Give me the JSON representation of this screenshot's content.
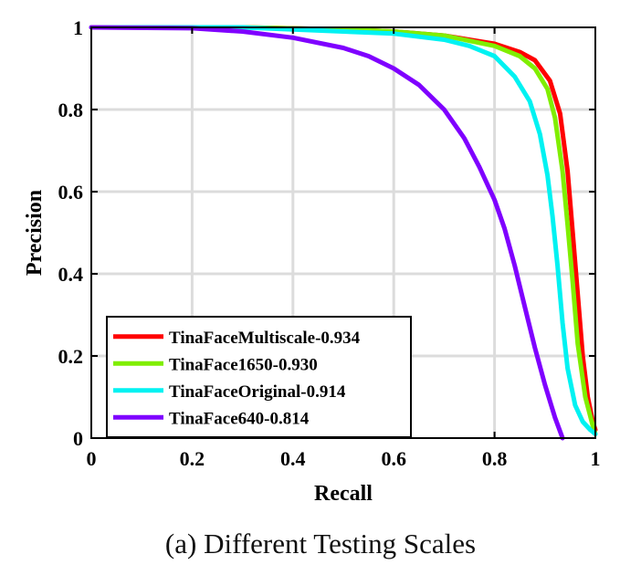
{
  "caption": "(a) Different Testing Scales",
  "chart_data": {
    "type": "line",
    "xlabel": "Recall",
    "ylabel": "Precision",
    "xlim": [
      0,
      1
    ],
    "ylim": [
      0,
      1
    ],
    "grid": true,
    "legend_position": "bottom-left",
    "x_ticks": [
      0,
      0.2,
      0.4,
      0.6,
      0.8,
      1
    ],
    "y_ticks": [
      0,
      0.2,
      0.4,
      0.6,
      0.8,
      1
    ],
    "x_tick_labels": [
      "0",
      "0.2",
      "0.4",
      "0.6",
      "0.8",
      "1"
    ],
    "y_tick_labels": [
      "0",
      "0.2",
      "0.4",
      "0.6",
      "0.8",
      "1"
    ],
    "series": [
      {
        "name": "TinaFaceMultiscale-0.934",
        "color": "#ff0000",
        "points": [
          [
            0,
            1
          ],
          [
            0.3,
            1
          ],
          [
            0.5,
            0.995
          ],
          [
            0.6,
            0.99
          ],
          [
            0.7,
            0.98
          ],
          [
            0.8,
            0.96
          ],
          [
            0.85,
            0.94
          ],
          [
            0.88,
            0.92
          ],
          [
            0.91,
            0.87
          ],
          [
            0.93,
            0.79
          ],
          [
            0.945,
            0.65
          ],
          [
            0.955,
            0.5
          ],
          [
            0.965,
            0.35
          ],
          [
            0.975,
            0.2
          ],
          [
            0.985,
            0.1
          ],
          [
            0.995,
            0.04
          ],
          [
            1,
            0.02
          ]
        ]
      },
      {
        "name": "TinaFace1650-0.930",
        "color": "#80ee00",
        "points": [
          [
            0,
            1
          ],
          [
            0.3,
            1
          ],
          [
            0.5,
            0.995
          ],
          [
            0.6,
            0.99
          ],
          [
            0.7,
            0.98
          ],
          [
            0.8,
            0.955
          ],
          [
            0.85,
            0.93
          ],
          [
            0.88,
            0.9
          ],
          [
            0.905,
            0.85
          ],
          [
            0.92,
            0.78
          ],
          [
            0.935,
            0.65
          ],
          [
            0.945,
            0.52
          ],
          [
            0.955,
            0.38
          ],
          [
            0.965,
            0.23
          ],
          [
            0.98,
            0.1
          ],
          [
            0.995,
            0.03
          ],
          [
            1,
            0.01
          ]
        ]
      },
      {
        "name": "TinaFaceOriginal-0.914",
        "color": "#00f2f2",
        "points": [
          [
            0,
            1
          ],
          [
            0.3,
            1
          ],
          [
            0.5,
            0.99
          ],
          [
            0.6,
            0.985
          ],
          [
            0.7,
            0.97
          ],
          [
            0.75,
            0.955
          ],
          [
            0.8,
            0.93
          ],
          [
            0.84,
            0.88
          ],
          [
            0.87,
            0.82
          ],
          [
            0.89,
            0.74
          ],
          [
            0.905,
            0.64
          ],
          [
            0.915,
            0.54
          ],
          [
            0.925,
            0.42
          ],
          [
            0.935,
            0.28
          ],
          [
            0.945,
            0.17
          ],
          [
            0.96,
            0.08
          ],
          [
            0.975,
            0.04
          ],
          [
            0.99,
            0.02
          ],
          [
            1,
            0.01
          ]
        ]
      },
      {
        "name": "TinaFace640-0.814",
        "color": "#7f00ff",
        "points": [
          [
            0,
            1
          ],
          [
            0.2,
            0.998
          ],
          [
            0.3,
            0.99
          ],
          [
            0.4,
            0.975
          ],
          [
            0.5,
            0.95
          ],
          [
            0.55,
            0.93
          ],
          [
            0.6,
            0.9
          ],
          [
            0.65,
            0.86
          ],
          [
            0.7,
            0.8
          ],
          [
            0.74,
            0.73
          ],
          [
            0.77,
            0.66
          ],
          [
            0.8,
            0.58
          ],
          [
            0.82,
            0.51
          ],
          [
            0.84,
            0.42
          ],
          [
            0.86,
            0.32
          ],
          [
            0.88,
            0.22
          ],
          [
            0.9,
            0.13
          ],
          [
            0.92,
            0.05
          ],
          [
            0.935,
            0
          ]
        ]
      }
    ]
  }
}
